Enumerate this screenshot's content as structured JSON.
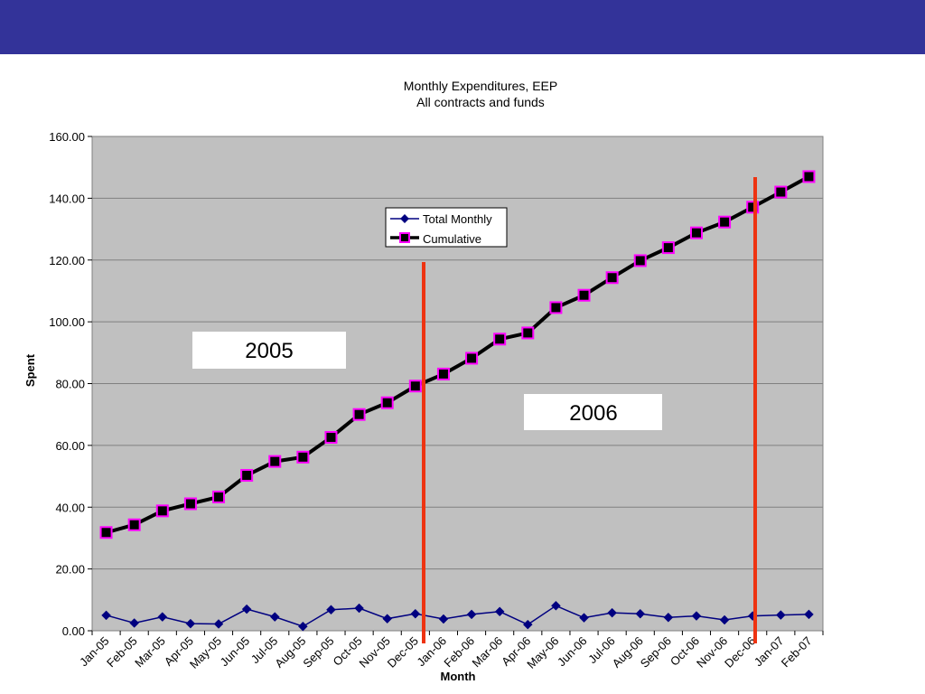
{
  "slide": {
    "band_color": "#333399"
  },
  "chart_data": {
    "type": "line",
    "title": "Monthly Expenditures, EEP",
    "subtitle": "All contracts and funds",
    "xlabel": "Month",
    "ylabel": "Spent",
    "ylim": [
      0,
      160
    ],
    "yticks": [
      "0.00",
      "20.00",
      "40.00",
      "60.00",
      "80.00",
      "100.00",
      "120.00",
      "140.00",
      "160.00"
    ],
    "grid": true,
    "legend_position": "top-center",
    "categories": [
      "Jan-05",
      "Feb-05",
      "Mar-05",
      "Apr-05",
      "May-05",
      "Jun-05",
      "Jul-05",
      "Aug-05",
      "Sep-05",
      "Oct-05",
      "Nov-05",
      "Dec-05",
      "Jan-06",
      "Feb-06",
      "Mar-06",
      "Apr-06",
      "May-06",
      "Jun-06",
      "Jul-06",
      "Aug-06",
      "Sep-06",
      "Oct-06",
      "Nov-06",
      "Dec-06",
      "Jan-07",
      "Feb-07"
    ],
    "series": [
      {
        "name": "Total Monthly",
        "color": "#000080",
        "marker": "diamond",
        "values": [
          5.0,
          2.5,
          4.5,
          2.3,
          2.2,
          7.0,
          4.5,
          1.4,
          6.8,
          7.3,
          3.9,
          5.5,
          3.8,
          5.3,
          6.2,
          2.0,
          8.1,
          4.2,
          5.8,
          5.5,
          4.3,
          4.8,
          3.5,
          4.8,
          5.1,
          5.3
        ]
      },
      {
        "name": "Cumulative",
        "color": "#000000",
        "marker": "square",
        "marker_edge_color": "#FF00FF",
        "values": [
          31.8,
          34.3,
          38.8,
          41.1,
          43.3,
          50.3,
          54.8,
          56.2,
          62.6,
          70.0,
          73.8,
          79.2,
          83.1,
          88.2,
          94.4,
          96.4,
          104.6,
          108.6,
          114.3,
          119.8,
          124.0,
          128.8,
          132.3,
          137.1,
          142.0,
          147.0
        ]
      }
    ],
    "annotations": {
      "year_2005": "2005",
      "year_2006": "2006",
      "divider_color": "#EE3311"
    }
  }
}
